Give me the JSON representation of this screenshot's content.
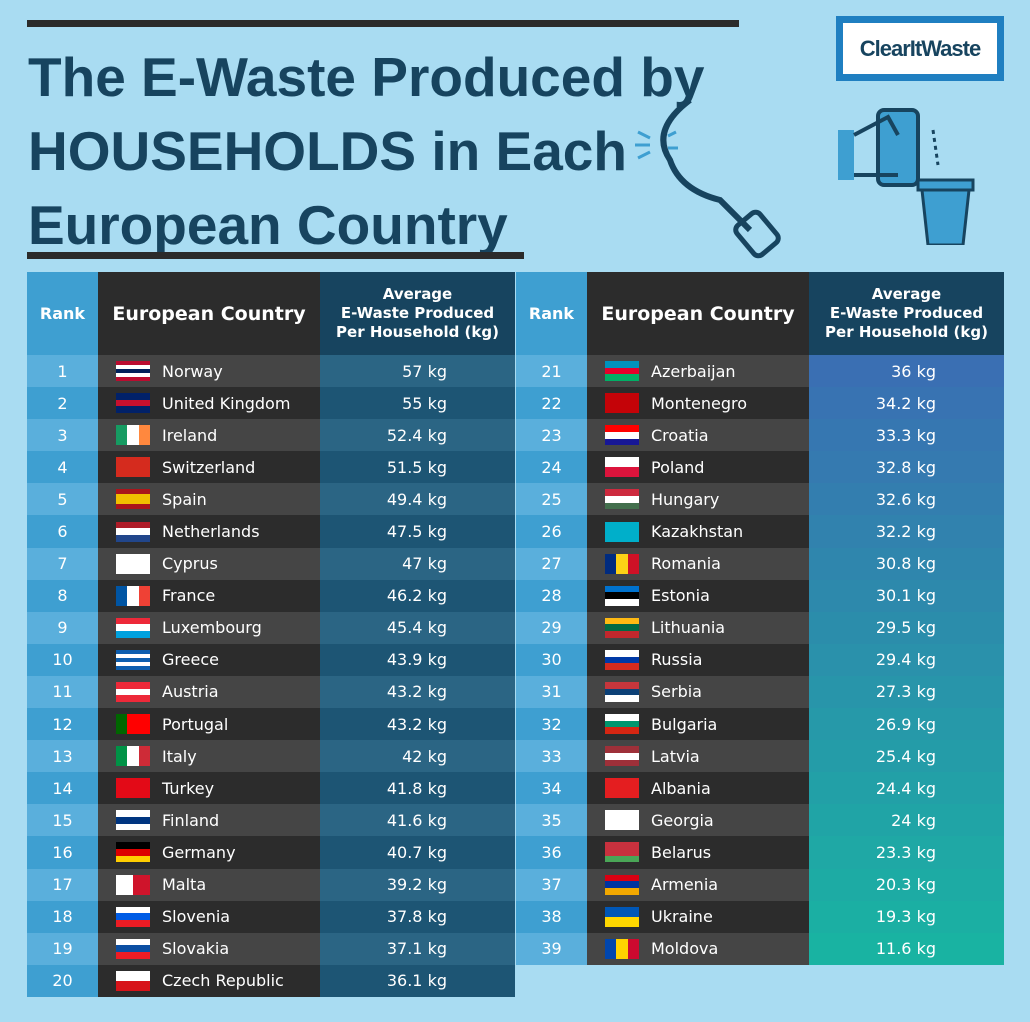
{
  "title": {
    "line1": "The E-Waste Produced by",
    "line2": "HOUSEHOLDS in Each",
    "line3": "European Country"
  },
  "logo": "ClearItWaste",
  "headers": {
    "rank": "Rank",
    "country": "European Country",
    "value_l1": "Average",
    "value_l2": "E-Waste Produced",
    "value_l3": "Per Household (kg)"
  },
  "colors": {
    "background": "#a9dcf2",
    "title": "#17445f",
    "left_value_a": "#2b6584",
    "left_value_b": "#1d5574",
    "right_value_start": "#3a6fb3",
    "right_value_end": "#19b3a2"
  },
  "chart_data": {
    "type": "table",
    "columns": [
      "Rank",
      "European Country",
      "Average E-Waste Produced Per Household (kg)"
    ],
    "rows": [
      {
        "rank": "1",
        "country": "Norway",
        "value": "57 kg",
        "flag": [
          "#ba0c2f",
          "#fff",
          "#00205b",
          "#fff",
          "#ba0c2f"
        ]
      },
      {
        "rank": "2",
        "country": "United Kingdom",
        "value": "55 kg",
        "flag": [
          "#012169",
          "#c8102e",
          "#012169"
        ]
      },
      {
        "rank": "3",
        "country": "Ireland",
        "value": "52.4 kg",
        "flag": [
          "#169b62",
          "#fff",
          "#ff883e"
        ],
        "v": 1
      },
      {
        "rank": "4",
        "country": "Switzerland",
        "value": "51.5 kg",
        "flag": [
          "#d52b1e"
        ]
      },
      {
        "rank": "5",
        "country": "Spain",
        "value": "49.4 kg",
        "flag": [
          "#aa151b",
          "#f1bf00",
          "#f1bf00",
          "#aa151b"
        ]
      },
      {
        "rank": "6",
        "country": "Netherlands",
        "value": "47.5 kg",
        "flag": [
          "#ae1c28",
          "#fff",
          "#21468b"
        ]
      },
      {
        "rank": "7",
        "country": "Cyprus",
        "value": "47 kg",
        "flag": [
          "#fff"
        ]
      },
      {
        "rank": "8",
        "country": "France",
        "value": "46.2 kg",
        "flag": [
          "#0055a4",
          "#fff",
          "#ef4135"
        ],
        "v": 1
      },
      {
        "rank": "9",
        "country": "Luxembourg",
        "value": "45.4 kg",
        "flag": [
          "#ed2939",
          "#fff",
          "#00a1de"
        ]
      },
      {
        "rank": "10",
        "country": "Greece",
        "value": "43.9 kg",
        "flag": [
          "#0d5eaf",
          "#fff",
          "#0d5eaf",
          "#fff",
          "#0d5eaf"
        ]
      },
      {
        "rank": "11",
        "country": "Austria",
        "value": "43.2 kg",
        "flag": [
          "#ed2939",
          "#fff",
          "#ed2939"
        ]
      },
      {
        "rank": "12",
        "country": "Portugal",
        "value": "43.2 kg",
        "flag": [
          "#006600",
          "#ff0000",
          "#ff0000"
        ],
        "v": 1
      },
      {
        "rank": "13",
        "country": "Italy",
        "value": "42 kg",
        "flag": [
          "#009246",
          "#fff",
          "#ce2b37"
        ],
        "v": 1
      },
      {
        "rank": "14",
        "country": "Turkey",
        "value": "41.8 kg",
        "flag": [
          "#e30a17"
        ]
      },
      {
        "rank": "15",
        "country": "Finland",
        "value": "41.6 kg",
        "flag": [
          "#fff",
          "#003580",
          "#fff"
        ]
      },
      {
        "rank": "16",
        "country": "Germany",
        "value": "40.7 kg",
        "flag": [
          "#000",
          "#dd0000",
          "#ffce00"
        ]
      },
      {
        "rank": "17",
        "country": "Malta",
        "value": "39.2 kg",
        "flag": [
          "#fff",
          "#cf142b"
        ],
        "v": 1
      },
      {
        "rank": "18",
        "country": "Slovenia",
        "value": "37.8 kg",
        "flag": [
          "#fff",
          "#005ce5",
          "#ed1c24"
        ]
      },
      {
        "rank": "19",
        "country": "Slovakia",
        "value": "37.1 kg",
        "flag": [
          "#fff",
          "#0b4ea2",
          "#ee1c25"
        ]
      },
      {
        "rank": "20",
        "country": "Czech Republic",
        "value": "36.1 kg",
        "flag": [
          "#fff",
          "#d7141a"
        ]
      },
      {
        "rank": "21",
        "country": "Azerbaijan",
        "value": "36 kg",
        "flag": [
          "#0092bc",
          "#e4002b",
          "#00af66"
        ]
      },
      {
        "rank": "22",
        "country": "Montenegro",
        "value": "34.2 kg",
        "flag": [
          "#c40308"
        ]
      },
      {
        "rank": "23",
        "country": "Croatia",
        "value": "33.3 kg",
        "flag": [
          "#ff0000",
          "#fff",
          "#171796"
        ]
      },
      {
        "rank": "24",
        "country": "Poland",
        "value": "32.8 kg",
        "flag": [
          "#fff",
          "#dc143c"
        ]
      },
      {
        "rank": "25",
        "country": "Hungary",
        "value": "32.6 kg",
        "flag": [
          "#cd2a3e",
          "#fff",
          "#436f4d"
        ]
      },
      {
        "rank": "26",
        "country": "Kazakhstan",
        "value": "32.2 kg",
        "flag": [
          "#00afca"
        ]
      },
      {
        "rank": "27",
        "country": "Romania",
        "value": "30.8 kg",
        "flag": [
          "#002b7f",
          "#fcd116",
          "#ce1126"
        ],
        "v": 1
      },
      {
        "rank": "28",
        "country": "Estonia",
        "value": "30.1 kg",
        "flag": [
          "#0072ce",
          "#000",
          "#fff"
        ]
      },
      {
        "rank": "29",
        "country": "Lithuania",
        "value": "29.5 kg",
        "flag": [
          "#fdb913",
          "#006a44",
          "#c1272d"
        ]
      },
      {
        "rank": "30",
        "country": "Russia",
        "value": "29.4 kg",
        "flag": [
          "#fff",
          "#0039a6",
          "#d52b1e"
        ]
      },
      {
        "rank": "31",
        "country": "Serbia",
        "value": "27.3 kg",
        "flag": [
          "#c6363c",
          "#0c4076",
          "#fff"
        ]
      },
      {
        "rank": "32",
        "country": "Bulgaria",
        "value": "26.9 kg",
        "flag": [
          "#fff",
          "#00966e",
          "#d62612"
        ]
      },
      {
        "rank": "33",
        "country": "Latvia",
        "value": "25.4 kg",
        "flag": [
          "#9e3039",
          "#fff",
          "#9e3039"
        ]
      },
      {
        "rank": "34",
        "country": "Albania",
        "value": "24.4 kg",
        "flag": [
          "#e41e20"
        ]
      },
      {
        "rank": "35",
        "country": "Georgia",
        "value": "24 kg",
        "flag": [
          "#fff"
        ]
      },
      {
        "rank": "36",
        "country": "Belarus",
        "value": "23.3 kg",
        "flag": [
          "#c8313e",
          "#c8313e",
          "#4aa657"
        ]
      },
      {
        "rank": "37",
        "country": "Armenia",
        "value": "20.3 kg",
        "flag": [
          "#d90012",
          "#0033a0",
          "#f2a800"
        ]
      },
      {
        "rank": "38",
        "country": "Ukraine",
        "value": "19.3 kg",
        "flag": [
          "#0057b7",
          "#ffd700"
        ]
      },
      {
        "rank": "39",
        "country": "Moldova",
        "value": "11.6 kg",
        "flag": [
          "#0046ae",
          "#ffd200",
          "#cc092f"
        ],
        "v": 1
      }
    ]
  }
}
